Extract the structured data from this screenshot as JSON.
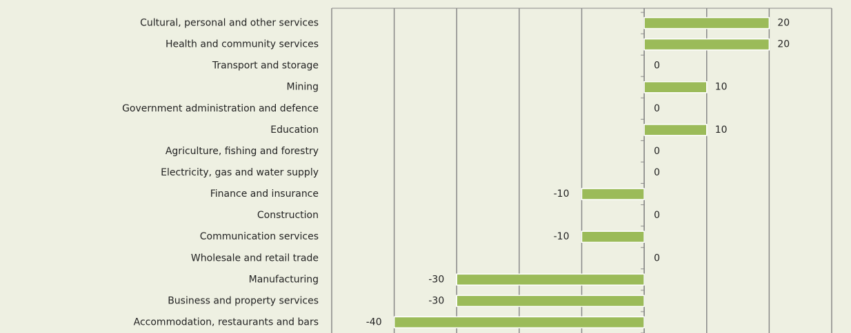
{
  "chart_data": {
    "type": "bar",
    "orientation": "horizontal",
    "categories": [
      "Cultural, personal and other services",
      "Health and community services",
      "Transport and storage",
      "Mining",
      "Government administration and defence",
      "Education",
      "Agriculture, fishing and forestry",
      "Electricity, gas and water supply",
      "Finance and insurance",
      "Construction",
      "Communication services",
      "Wholesale and retail trade",
      "Manufacturing",
      "Business and property services",
      "Accommodation, restaurants and bars"
    ],
    "values": [
      20,
      20,
      0,
      10,
      0,
      10,
      0,
      0,
      -10,
      0,
      -10,
      0,
      -30,
      -30,
      -40
    ],
    "color": "#9bbb59",
    "xlim": [
      -50,
      30
    ],
    "xticks": [
      -50,
      -40,
      -30,
      -20,
      -10,
      0,
      10,
      20,
      30
    ],
    "grid": true
  }
}
